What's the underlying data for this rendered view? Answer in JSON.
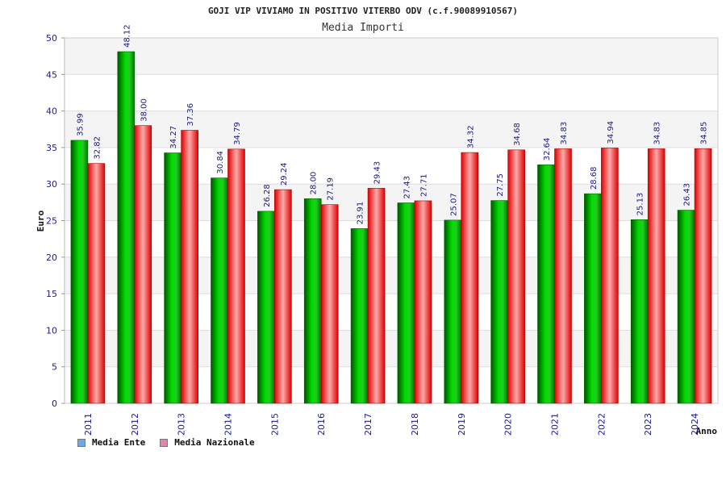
{
  "chart_data": {
    "type": "bar",
    "title": "GOJI VIP VIVIAMO IN POSITIVO VITERBO ODV (c.f.90089910567)",
    "subtitle": "Media Importi",
    "ylabel": "Euro",
    "xlabel": "Anno",
    "ylim": [
      0,
      50
    ],
    "yticks": [
      0,
      5,
      10,
      15,
      20,
      25,
      30,
      35,
      40,
      45,
      50
    ],
    "categories": [
      "2011",
      "2012",
      "2013",
      "2014",
      "2015",
      "2016",
      "2017",
      "2018",
      "2019",
      "2020",
      "2021",
      "2022",
      "2023",
      "2024"
    ],
    "series": [
      {
        "name": "Media Ente",
        "color": "#00aa00",
        "legend_color": "#66aaee",
        "values": [
          35.99,
          48.12,
          34.27,
          30.84,
          26.28,
          28.0,
          23.91,
          27.43,
          25.07,
          27.75,
          32.64,
          28.68,
          25.13,
          26.43
        ],
        "labels": [
          "35.99",
          "48.12",
          "34.27",
          "30.84",
          "26.28",
          "28.00",
          "23.91",
          "27.43",
          "25.07",
          "27.75",
          "32.64",
          "28.68",
          "25.13",
          "26.43"
        ]
      },
      {
        "name": "Media Nazionale",
        "color": "#ee1111",
        "legend_color": "#dd88aa",
        "values": [
          32.82,
          38.0,
          37.36,
          34.79,
          29.24,
          27.19,
          29.43,
          27.71,
          34.32,
          34.68,
          34.83,
          34.94,
          34.83,
          34.85
        ],
        "labels": [
          "32.82",
          "38.00",
          "37.36",
          "34.79",
          "29.24",
          "27.19",
          "29.43",
          "27.71",
          "34.32",
          "34.68",
          "34.83",
          "34.94",
          "34.83",
          "34.85"
        ]
      }
    ],
    "grid": true,
    "legend_position": "bottom-left"
  }
}
